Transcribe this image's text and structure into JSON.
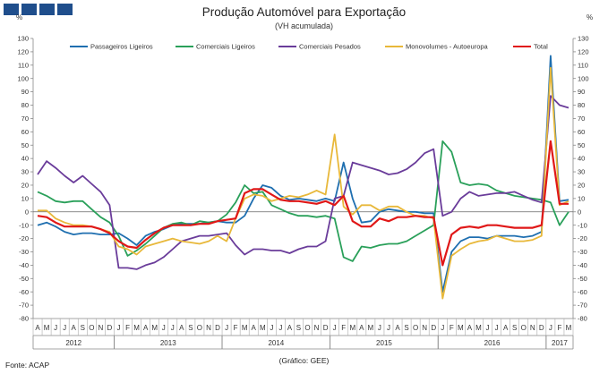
{
  "header": {
    "title": "Produção Automóvel para Exportação",
    "subtitle": "(VH acumulada)",
    "unit_left": "%",
    "unit_right": "%"
  },
  "footer": {
    "source": "Fonte: ACAP",
    "credit": "(Gráfico: GEE)"
  },
  "chart_data": {
    "type": "line",
    "title": "Produção Automóvel para Exportação",
    "subtitle": "(VH acumulada)",
    "ylabel": "%",
    "ylim": [
      -80,
      130
    ],
    "ytick_step": 10,
    "legend_position": "top",
    "grid": false,
    "month_labels": [
      "A",
      "M",
      "J",
      "J",
      "A",
      "S",
      "O",
      "N",
      "D",
      "J",
      "F",
      "M",
      "A",
      "M",
      "J",
      "J",
      "A",
      "S",
      "O",
      "N",
      "D",
      "J",
      "F",
      "M",
      "A",
      "M",
      "J",
      "J",
      "A",
      "S",
      "O",
      "N",
      "D",
      "J",
      "F",
      "M",
      "A",
      "M",
      "J",
      "J",
      "A",
      "S",
      "O",
      "N",
      "D",
      "J",
      "F",
      "M",
      "A",
      "M",
      "J",
      "J",
      "A",
      "S",
      "O",
      "N",
      "D",
      "J",
      "F",
      "M"
    ],
    "year_labels": [
      {
        "label": "2012",
        "start": 0,
        "end": 8
      },
      {
        "label": "2013",
        "start": 9,
        "end": 20
      },
      {
        "label": "2014",
        "start": 21,
        "end": 32
      },
      {
        "label": "2015",
        "start": 33,
        "end": 44
      },
      {
        "label": "2016",
        "start": 45,
        "end": 56
      },
      {
        "label": "2017",
        "start": 57,
        "end": 59
      }
    ],
    "series": [
      {
        "name": "Passageiros Ligeiros",
        "color": "#1f6fb0",
        "values": [
          -10,
          -8,
          -11,
          -15,
          -17,
          -16,
          -16,
          -17,
          -17,
          -16,
          -20,
          -25,
          -18,
          -15,
          -13,
          -10,
          -9,
          -9,
          -9,
          -8,
          -7,
          -8,
          -8,
          -3,
          10,
          20,
          18,
          12,
          9,
          10,
          9,
          8,
          10,
          8,
          37,
          10,
          -8,
          -7,
          0,
          2,
          1,
          0,
          0,
          -1,
          -1,
          -60,
          -30,
          -22,
          -19,
          -19,
          -20,
          -18,
          -18,
          -18,
          -19,
          -18,
          -15,
          117,
          8,
          9
        ]
      },
      {
        "name": "Comerciais Ligeiros",
        "color": "#2aa05a",
        "values": [
          15,
          12,
          8,
          7,
          8,
          8,
          2,
          -4,
          -8,
          -18,
          -33,
          -29,
          -24,
          -18,
          -12,
          -9,
          -8,
          -10,
          -7,
          -8,
          -7,
          -2,
          7,
          20,
          14,
          15,
          5,
          2,
          -1,
          -3,
          -3,
          -4,
          -3,
          -5,
          -34,
          -37,
          -26,
          -27,
          -25,
          -24,
          -24,
          -22,
          -18,
          -14,
          -10,
          53,
          45,
          22,
          20,
          21,
          20,
          16,
          14,
          12,
          11,
          10,
          9,
          7,
          -10,
          0
        ]
      },
      {
        "name": "Comerciais Pesados",
        "color": "#6a3c9a",
        "values": [
          28,
          38,
          33,
          27,
          22,
          27,
          21,
          15,
          5,
          -42,
          -42,
          -43,
          -40,
          -38,
          -34,
          -28,
          -22,
          -20,
          -18,
          -18,
          -17,
          -16,
          -25,
          -32,
          -28,
          -28,
          -29,
          -29,
          -31,
          -28,
          -26,
          -26,
          -22,
          10,
          12,
          37,
          35,
          33,
          31,
          28,
          29,
          32,
          37,
          44,
          47,
          -3,
          0,
          10,
          15,
          12,
          13,
          14,
          14,
          15,
          12,
          9,
          7,
          87,
          80,
          78
        ]
      },
      {
        "name": "Monovolumes - Autoeuropa",
        "color": "#e8b83a",
        "values": [
          1,
          1,
          -5,
          -8,
          -10,
          -10,
          -11,
          -13,
          -15,
          -26,
          -28,
          -32,
          -26,
          -24,
          -22,
          -20,
          -22,
          -23,
          -24,
          -22,
          -18,
          -22,
          -5,
          10,
          13,
          12,
          8,
          10,
          12,
          11,
          13,
          16,
          13,
          58,
          4,
          -2,
          5,
          5,
          1,
          4,
          4,
          0,
          -3,
          -3,
          -5,
          -65,
          -33,
          -28,
          -24,
          -22,
          -21,
          -18,
          -20,
          -22,
          -22,
          -21,
          -18,
          108,
          5,
          8
        ]
      },
      {
        "name": "Total",
        "color": "#e01818",
        "values": [
          -3,
          -4,
          -8,
          -11,
          -11,
          -11,
          -11,
          -13,
          -16,
          -22,
          -26,
          -27,
          -21,
          -16,
          -12,
          -10,
          -10,
          -10,
          -9,
          -9,
          -7,
          -6,
          -5,
          14,
          17,
          17,
          13,
          9,
          8,
          8,
          7,
          6,
          8,
          5,
          12,
          -7,
          -11,
          -11,
          -5,
          -7,
          -4,
          -4,
          -3,
          -4,
          -4,
          -40,
          -17,
          -12,
          -11,
          -12,
          -10,
          -10,
          -11,
          -12,
          -12,
          -12,
          -10,
          53,
          6,
          6
        ]
      }
    ]
  }
}
